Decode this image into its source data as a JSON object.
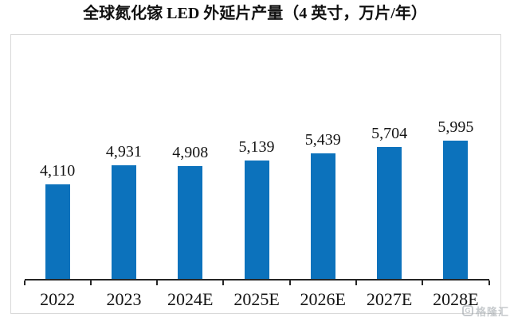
{
  "title": "全球氮化镓 LED 外延片产量（4 英寸，万片/年）",
  "watermark": {
    "icon": "G",
    "text": "格隆汇"
  },
  "colors": {
    "bar": "#0c72bc",
    "axis": "#262626",
    "panel_border": "#d9d9d9",
    "text": "#141414"
  },
  "chart_data": {
    "type": "bar",
    "title": "全球氮化镓 LED 外延片产量（4 英寸，万片/年）",
    "categories": [
      "2022",
      "2023",
      "2024E",
      "2025E",
      "2026E",
      "2027E",
      "2028E"
    ],
    "values": [
      4110,
      4931,
      4908,
      5139,
      5439,
      5704,
      5995
    ],
    "value_labels": [
      "4,110",
      "4,931",
      "4,908",
      "5,139",
      "5,439",
      "5,704",
      "5,995"
    ],
    "bar_color": "#0c72bc",
    "xlabel": "",
    "ylabel": "",
    "ylim": [
      0,
      6200
    ],
    "grid": false,
    "legend": null,
    "y_axis_visible": false,
    "x_axis_line": true,
    "tick_marks": "category-boundaries",
    "data_label_position": "above-bars"
  }
}
